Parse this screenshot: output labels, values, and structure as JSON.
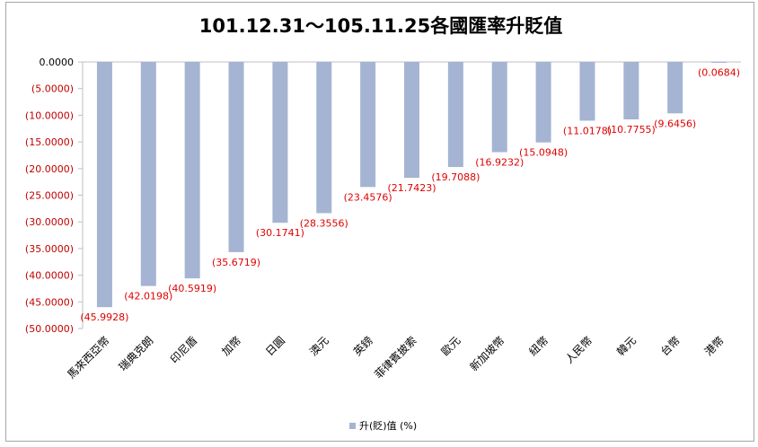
{
  "chart_data": {
    "type": "bar",
    "title": "101.12.31～105.11.25各國匯率升貶值",
    "categories": [
      "馬來西亞幣",
      "瑞典克朗",
      "印尼盾",
      "加幣",
      "日圓",
      "澳元",
      "英鎊",
      "菲律賓披索",
      "歐元",
      "新加坡幣",
      "紐幣",
      "人民幣",
      "韓元",
      "台幣",
      "港幣"
    ],
    "series": [
      {
        "name": "升(貶)值 (%)",
        "values": [
          -45.9928,
          -42.0198,
          -40.5919,
          -35.6719,
          -30.1741,
          -28.3556,
          -23.4576,
          -21.7423,
          -19.7088,
          -16.9232,
          -15.0948,
          -11.0178,
          -10.7755,
          -9.6456,
          -0.0684
        ]
      }
    ],
    "data_labels": [
      "(45.9928)",
      "(42.0198)",
      "(40.5919)",
      "(35.6719)",
      "(30.1741)",
      "(28.3556)",
      "(23.4576)",
      "(21.7423)",
      "(19.7088)",
      "(16.9232)",
      "(15.0948)",
      "(11.0178)",
      "(10.7755)",
      "(9.6456)",
      "(0.0684)"
    ],
    "ylim": [
      -50,
      0
    ],
    "y_ticks": [
      0,
      -5,
      -10,
      -15,
      -20,
      -25,
      -30,
      -35,
      -40,
      -45,
      -50
    ],
    "y_tick_labels": [
      "0.0000",
      "(5.0000)",
      "(10.0000)",
      "(15.0000)",
      "(20.0000)",
      "(25.0000)",
      "(30.0000)",
      "(35.0000)",
      "(40.0000)",
      "(45.0000)",
      "(50.0000)"
    ],
    "legend_position": "bottom",
    "grid": false,
    "colors": {
      "bar": "#a5b4d2",
      "label": "#e00000",
      "axis_label": "#c00000",
      "axis": "#bfbfbf"
    }
  }
}
